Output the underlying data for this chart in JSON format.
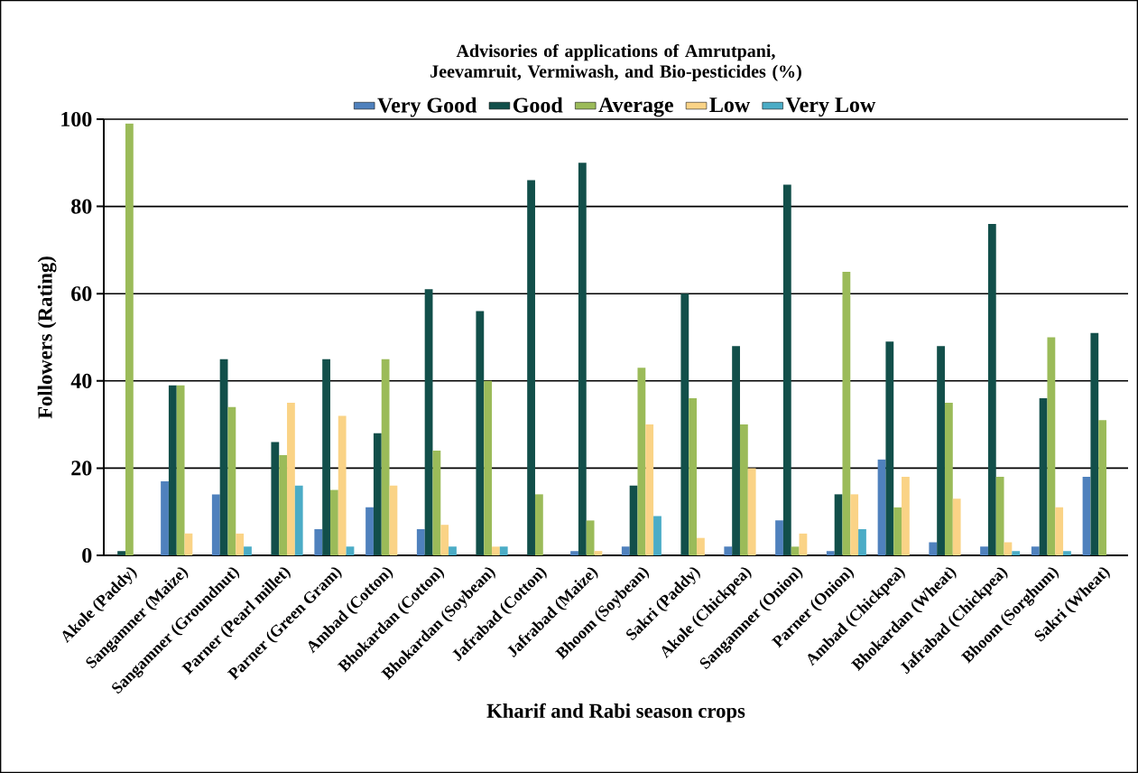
{
  "chart_data": {
    "type": "bar",
    "title": "Advisories of applications of Amrutpani, Jeevamruit, Vermiwash, and Bio-pesticides (%)",
    "xlabel": "Kharif and Rabi season crops",
    "ylabel": "Followers (Rating)",
    "categories": [
      "Akole (Paddy)",
      "Sangamner (Maize)",
      "Sangamner (Groundnut)",
      "Parner (Pearl millet)",
      "Parner (Green Gram)",
      "Ambad (Cotton)",
      "Bhokardan (Cotton)",
      "Bhokardan (Soybean)",
      "Jafrabad (Cotton)",
      "Jafrabad (Maize)",
      "Bhoom (Soybean)",
      "Sakri (Paddy)",
      "Akole (Chickpea)",
      "Sangamner (Onion)",
      "Parner (Onion)",
      "Ambad (Chickpea)",
      "Bhokardan (Wheat)",
      "Jafrabad (Chickpea)",
      "Bhoom (Sorghum)",
      "Sakri (Wheat)"
    ],
    "series": [
      {
        "name": "Very Good",
        "color": "#4f81bd",
        "values": [
          0,
          17,
          14,
          0,
          6,
          11,
          6,
          0,
          0,
          1,
          2,
          0,
          2,
          8,
          1,
          22,
          3,
          2,
          2,
          18
        ]
      },
      {
        "name": "Good",
        "color": "#124f4a",
        "values": [
          1,
          39,
          45,
          26,
          45,
          28,
          61,
          56,
          86,
          90,
          16,
          60,
          48,
          85,
          14,
          49,
          48,
          76,
          36,
          51
        ]
      },
      {
        "name": "Average",
        "color": "#9bbb59",
        "values": [
          99,
          39,
          34,
          23,
          15,
          45,
          24,
          40,
          14,
          8,
          43,
          36,
          30,
          2,
          65,
          11,
          35,
          18,
          50,
          31
        ]
      },
      {
        "name": "Low",
        "color": "#fad386",
        "values": [
          0,
          5,
          5,
          35,
          32,
          16,
          7,
          2,
          0,
          1,
          30,
          4,
          20,
          5,
          14,
          18,
          13,
          3,
          11,
          0
        ]
      },
      {
        "name": "Very Low",
        "color": "#4bacc6",
        "values": [
          0,
          0,
          2,
          16,
          2,
          0,
          2,
          2,
          0,
          0,
          9,
          0,
          0,
          0,
          6,
          0,
          0,
          1,
          1,
          0
        ]
      }
    ],
    "ylim": [
      0,
      100
    ],
    "yticks": [
      0,
      20,
      40,
      60,
      80,
      100
    ],
    "grid": "y",
    "legend": "top"
  }
}
